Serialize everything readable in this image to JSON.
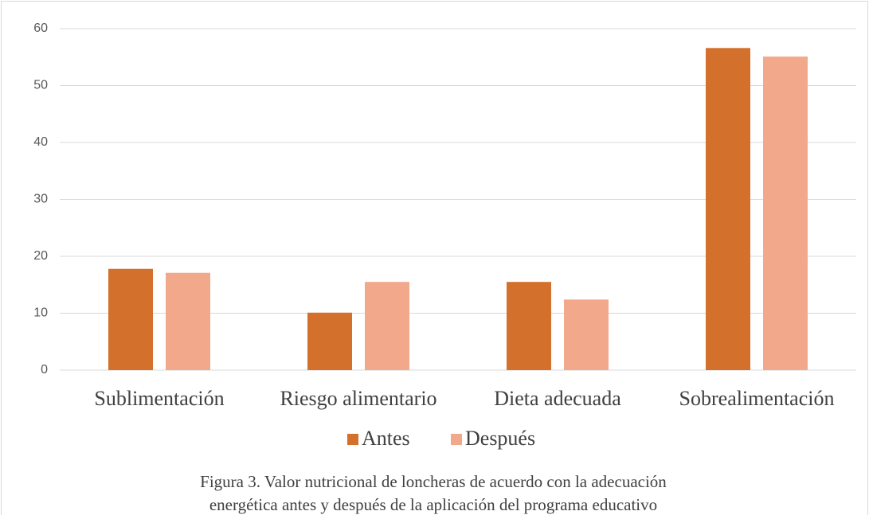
{
  "chart_data": {
    "type": "bar",
    "categories": [
      "Sublimentación",
      "Riesgo alimentario",
      "Dieta adecuada",
      "Sobrealimentación"
    ],
    "series": [
      {
        "name": "Antes",
        "color": "#d2702c",
        "values": [
          17.8,
          10.1,
          15.5,
          56.6
        ]
      },
      {
        "name": "Después",
        "color": "#f2a98b",
        "values": [
          17.1,
          15.5,
          12.4,
          55.1
        ]
      }
    ],
    "ylim": [
      0,
      60
    ],
    "yticks": [
      0,
      10,
      20,
      30,
      40,
      50,
      60
    ],
    "grid": true,
    "legend": "bottom",
    "caption": [
      "Figura 3. Valor nutricional de loncheras de acuerdo con la adecuación",
      "energética antes y después de la aplicación del programa educativo"
    ]
  }
}
